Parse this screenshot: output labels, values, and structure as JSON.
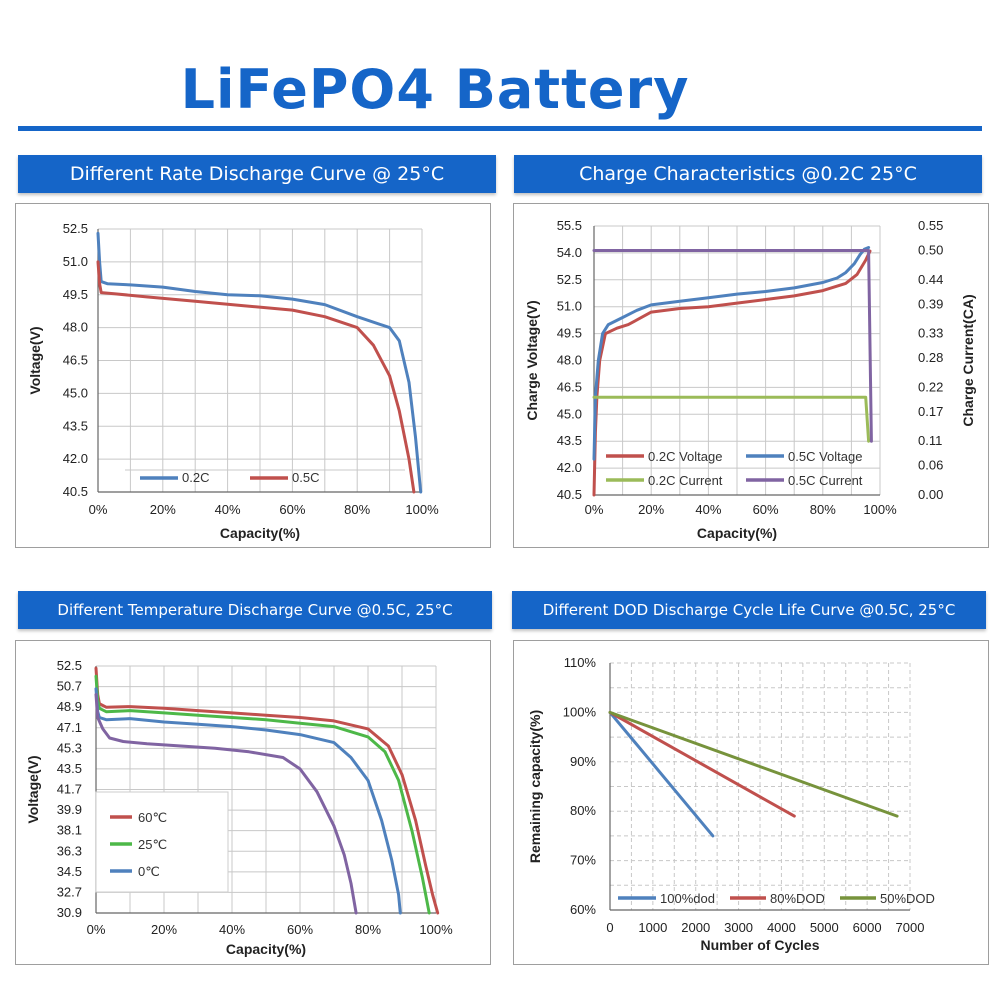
{
  "title": "LiFePO4 Battery",
  "panels": [
    {
      "header": "Different Rate Discharge Curve @ 25°C"
    },
    {
      "header": "Charge Characteristics @0.2C   25°C"
    },
    {
      "header": "Different Temperature Discharge Curve @0.5C, 25°C"
    },
    {
      "header": "Different DOD Discharge Cycle Life Curve @0.5C, 25°C"
    }
  ],
  "chart_data": [
    {
      "type": "line",
      "title": "Different Rate Discharge Curve @ 25°C",
      "xlabel": "Capacity(%)",
      "ylabel": "Voltage(V)",
      "xlim": [
        0,
        100
      ],
      "ylim": [
        40.5,
        52.5
      ],
      "x_ticks": [
        "0%",
        "20%",
        "40%",
        "60%",
        "80%",
        "100%"
      ],
      "y_ticks": [
        "52.5",
        "51.0",
        "49.5",
        "48.0",
        "46.5",
        "45.0",
        "43.5",
        "42.0",
        "40.5"
      ],
      "y_tick_values": [
        52.5,
        51.0,
        49.5,
        48.0,
        46.5,
        45.0,
        43.5,
        42.0,
        40.5
      ],
      "grid": true,
      "legend": "bottom-left",
      "series": [
        {
          "name": "0.2C",
          "color": "#4f81bd",
          "points": [
            [
              0,
              52.3
            ],
            [
              0.5,
              51.0
            ],
            [
              1,
              50.1
            ],
            [
              3,
              50.0
            ],
            [
              10,
              49.95
            ],
            [
              20,
              49.85
            ],
            [
              30,
              49.65
            ],
            [
              40,
              49.5
            ],
            [
              50,
              49.45
            ],
            [
              60,
              49.3
            ],
            [
              70,
              49.05
            ],
            [
              80,
              48.5
            ],
            [
              90,
              48.0
            ],
            [
              93,
              47.4
            ],
            [
              96,
              45.5
            ],
            [
              98,
              43.0
            ],
            [
              99.6,
              40.5
            ]
          ]
        },
        {
          "name": "0.5C",
          "color": "#c0504d",
          "points": [
            [
              0,
              51.0
            ],
            [
              0.5,
              50.0
            ],
            [
              1,
              49.6
            ],
            [
              5,
              49.55
            ],
            [
              15,
              49.4
            ],
            [
              30,
              49.2
            ],
            [
              45,
              49.0
            ],
            [
              60,
              48.8
            ],
            [
              70,
              48.5
            ],
            [
              80,
              48.0
            ],
            [
              85,
              47.2
            ],
            [
              90,
              45.8
            ],
            [
              93,
              44.2
            ],
            [
              96,
              42.0
            ],
            [
              97.5,
              40.5
            ]
          ]
        }
      ]
    },
    {
      "type": "line",
      "title": "Charge Characteristics @0.2C   25°C",
      "xlabel": "Capacity(%)",
      "ylabel": "Charge Voltage(V)",
      "y2label": "Charge Current(CA)",
      "xlim": [
        0,
        100
      ],
      "ylim": [
        40.5,
        55.5
      ],
      "y2lim": [
        0,
        0.55
      ],
      "x_ticks": [
        "0%",
        "20%",
        "40%",
        "60%",
        "80%",
        "100%"
      ],
      "y_ticks": [
        "55.5",
        "54.0",
        "52.5",
        "51.0",
        "49.5",
        "48.0",
        "46.5",
        "45.0",
        "43.5",
        "42.0",
        "40.5"
      ],
      "y_tick_values": [
        55.5,
        54.0,
        52.5,
        51.0,
        49.5,
        48.0,
        46.5,
        45.0,
        43.5,
        42.0,
        40.5
      ],
      "y2_ticks": [
        "0.55",
        "0.50",
        "0.44",
        "0.39",
        "0.33",
        "0.28",
        "0.22",
        "0.17",
        "0.11",
        "0.06",
        "0.00"
      ],
      "y2_tick_values": [
        0.55,
        0.5,
        0.44,
        0.39,
        0.33,
        0.28,
        0.22,
        0.17,
        0.11,
        0.06,
        0.0
      ],
      "grid": true,
      "legend": "bottom",
      "series": [
        {
          "name": "0.2C Voltage",
          "color": "#c0504d",
          "axis": "left",
          "points": [
            [
              0,
              40.5
            ],
            [
              0.5,
              44.0
            ],
            [
              1,
              46.0
            ],
            [
              2,
              48.0
            ],
            [
              4,
              49.5
            ],
            [
              8,
              49.8
            ],
            [
              12,
              50.0
            ],
            [
              20,
              50.7
            ],
            [
              30,
              50.9
            ],
            [
              40,
              51.0
            ],
            [
              50,
              51.2
            ],
            [
              60,
              51.4
            ],
            [
              70,
              51.6
            ],
            [
              80,
              51.9
            ],
            [
              88,
              52.3
            ],
            [
              92,
              52.8
            ],
            [
              95,
              53.6
            ],
            [
              96.5,
              54.1
            ]
          ]
        },
        {
          "name": "0.5C Voltage",
          "color": "#4f81bd",
          "axis": "left",
          "points": [
            [
              0,
              42.5
            ],
            [
              0.5,
              46.0
            ],
            [
              1.5,
              48.0
            ],
            [
              3,
              49.5
            ],
            [
              5,
              50.0
            ],
            [
              10,
              50.4
            ],
            [
              15,
              50.8
            ],
            [
              20,
              51.1
            ],
            [
              30,
              51.3
            ],
            [
              40,
              51.5
            ],
            [
              50,
              51.7
            ],
            [
              60,
              51.85
            ],
            [
              70,
              52.05
            ],
            [
              80,
              52.35
            ],
            [
              85,
              52.6
            ],
            [
              88,
              52.9
            ],
            [
              91,
              53.4
            ],
            [
              93,
              53.9
            ],
            [
              94.5,
              54.2
            ],
            [
              96,
              54.3
            ]
          ]
        },
        {
          "name": "0.2C Current",
          "color": "#9bbb59",
          "axis": "right",
          "points": [
            [
              0,
              0.2
            ],
            [
              95,
              0.2
            ],
            [
              96,
              0.11
            ]
          ]
        },
        {
          "name": "0.5C Current",
          "color": "#8064a2",
          "axis": "right",
          "points": [
            [
              0,
              0.5
            ],
            [
              96,
              0.5
            ],
            [
              97,
              0.11
            ]
          ]
        }
      ]
    },
    {
      "type": "line",
      "title": "Different Temperature Discharge Curve @0.5C, 25°C",
      "xlabel": "Capacity(%)",
      "ylabel": "Voltage(V)",
      "xlim": [
        0,
        100
      ],
      "ylim": [
        30.9,
        52.5
      ],
      "x_ticks": [
        "0%",
        "20%",
        "40%",
        "60%",
        "80%",
        "100%"
      ],
      "y_ticks": [
        "52.5",
        "50.7",
        "48.9",
        "47.1",
        "45.3",
        "43.5",
        "41.7",
        "39.9",
        "38.1",
        "36.3",
        "34.5",
        "32.7",
        "30.9"
      ],
      "y_tick_values": [
        52.5,
        50.7,
        48.9,
        47.1,
        45.3,
        43.5,
        41.7,
        39.9,
        38.1,
        36.3,
        34.5,
        32.7,
        30.9
      ],
      "grid": true,
      "legend": "bottom-left",
      "series": [
        {
          "name": "60℃",
          "color": "#c0504d",
          "points": [
            [
              0,
              52.3
            ],
            [
              0.5,
              50.0
            ],
            [
              1,
              49.2
            ],
            [
              3,
              48.9
            ],
            [
              10,
              48.95
            ],
            [
              20,
              48.8
            ],
            [
              30,
              48.6
            ],
            [
              40,
              48.4
            ],
            [
              50,
              48.2
            ],
            [
              60,
              48.0
            ],
            [
              70,
              47.7
            ],
            [
              80,
              47.0
            ],
            [
              86,
              45.5
            ],
            [
              90,
              43.0
            ],
            [
              94,
              39.0
            ],
            [
              97,
              35.0
            ],
            [
              99,
              32.5
            ],
            [
              100.5,
              30.9
            ]
          ]
        },
        {
          "name": "25℃",
          "color": "#4db848",
          "points": [
            [
              0,
              51.6
            ],
            [
              0.5,
              49.5
            ],
            [
              1,
              48.8
            ],
            [
              3,
              48.5
            ],
            [
              10,
              48.6
            ],
            [
              20,
              48.4
            ],
            [
              30,
              48.2
            ],
            [
              40,
              48.0
            ],
            [
              50,
              47.8
            ],
            [
              60,
              47.5
            ],
            [
              70,
              47.2
            ],
            [
              80,
              46.3
            ],
            [
              85,
              45.0
            ],
            [
              89,
              42.5
            ],
            [
              93,
              38.0
            ],
            [
              96,
              34.0
            ],
            [
              98,
              30.9
            ]
          ]
        },
        {
          "name": "0℃",
          "color": "#4f81bd",
          "points": [
            [
              0,
              50.5
            ],
            [
              0.5,
              48.5
            ],
            [
              1,
              48.0
            ],
            [
              3,
              47.8
            ],
            [
              10,
              47.9
            ],
            [
              20,
              47.6
            ],
            [
              30,
              47.4
            ],
            [
              40,
              47.2
            ],
            [
              50,
              46.9
            ],
            [
              60,
              46.5
            ],
            [
              70,
              45.8
            ],
            [
              75,
              44.5
            ],
            [
              80,
              42.5
            ],
            [
              84,
              39.0
            ],
            [
              87,
              35.5
            ],
            [
              89,
              32.5
            ],
            [
              89.5,
              30.9
            ]
          ]
        },
        {
          "name": "",
          "color": "#8064a2",
          "points": [
            [
              0,
              50.0
            ],
            [
              0.5,
              48.0
            ],
            [
              2,
              47.0
            ],
            [
              4,
              46.2
            ],
            [
              8,
              45.9
            ],
            [
              15,
              45.7
            ],
            [
              25,
              45.5
            ],
            [
              35,
              45.3
            ],
            [
              45,
              45.0
            ],
            [
              55,
              44.5
            ],
            [
              60,
              43.5
            ],
            [
              65,
              41.5
            ],
            [
              70,
              38.5
            ],
            [
              73,
              36.0
            ],
            [
              75,
              33.5
            ],
            [
              76.5,
              30.9
            ]
          ]
        }
      ]
    },
    {
      "type": "line",
      "title": "Different DOD Discharge Cycle Life Curve @0.5C, 25°C",
      "xlabel": "Number of Cycles",
      "ylabel": "Remaining capacity(%)",
      "xlim": [
        0,
        7000
      ],
      "ylim": [
        60,
        110
      ],
      "x_ticks": [
        "0",
        "1000",
        "2000",
        "3000",
        "4000",
        "5000",
        "6000",
        "7000"
      ],
      "x_tick_values": [
        0,
        1000,
        2000,
        3000,
        4000,
        5000,
        6000,
        7000
      ],
      "y_ticks": [
        "110%",
        "100%",
        "90%",
        "80%",
        "70%",
        "60%"
      ],
      "y_tick_values": [
        110,
        100,
        90,
        80,
        70,
        60
      ],
      "grid": true,
      "legend": "bottom",
      "series": [
        {
          "name": "100%dod",
          "color": "#4f81bd",
          "points": [
            [
              0,
              100
            ],
            [
              2400,
              75
            ]
          ]
        },
        {
          "name": "80%DOD",
          "color": "#c0504d",
          "points": [
            [
              0,
              100
            ],
            [
              4300,
              79
            ]
          ]
        },
        {
          "name": "50%DOD",
          "color": "#77933c",
          "points": [
            [
              0,
              100
            ],
            [
              6700,
              79
            ]
          ]
        }
      ]
    }
  ]
}
